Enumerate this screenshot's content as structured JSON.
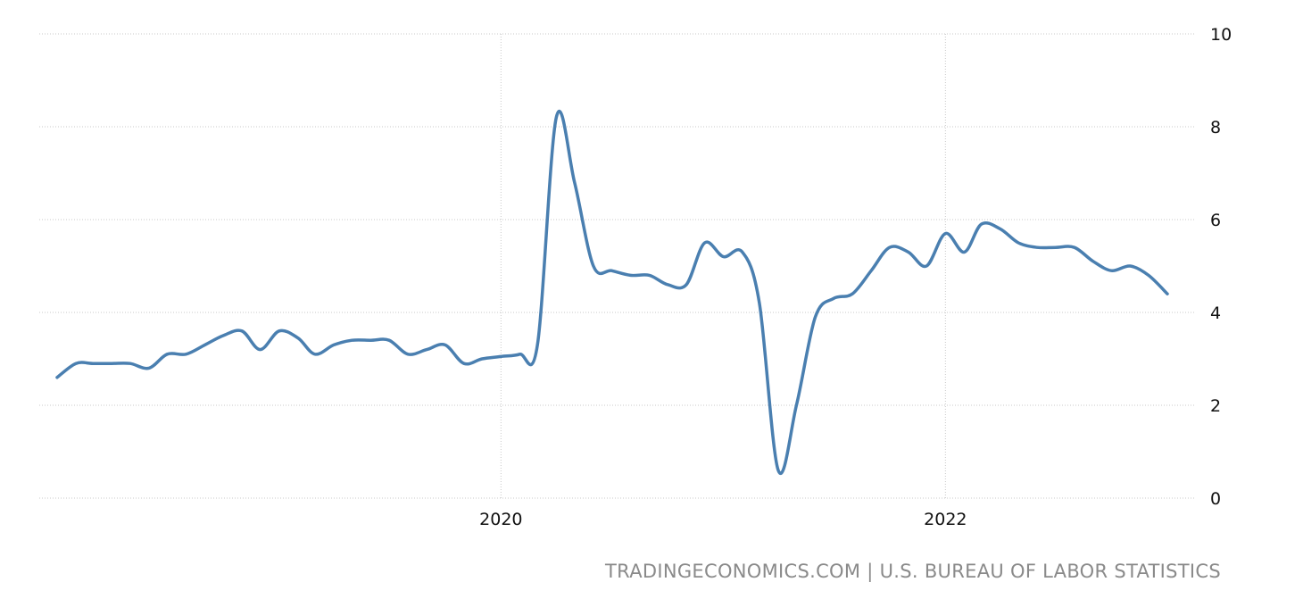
{
  "source": "TRADINGECONOMICS.COM | U.S. BUREAU OF LABOR STATISTICS",
  "colors": {
    "line": "#4a7fb0",
    "grid": "#c8c8c8",
    "text": "#111111",
    "source": "#8a8a8a"
  },
  "chart_data": {
    "type": "line",
    "title": "",
    "xlabel": "",
    "ylabel": "",
    "ylim": [
      0,
      10
    ],
    "yticks": [
      "0",
      "2",
      "4",
      "6",
      "8",
      "10"
    ],
    "xlim": [
      "2018-01-01",
      "2023-02-01"
    ],
    "xticks": [
      {
        "date": "2020-01-01",
        "label": "2020"
      },
      {
        "date": "2022-01-01",
        "label": "2022"
      }
    ],
    "grid": true,
    "legend": "none",
    "series": [
      {
        "points": [
          [
            "2018-01-01",
            2.6
          ],
          [
            "2018-02-01",
            2.9
          ],
          [
            "2018-03-01",
            2.9
          ],
          [
            "2018-04-01",
            2.9
          ],
          [
            "2018-05-01",
            2.9
          ],
          [
            "2018-06-01",
            2.8
          ],
          [
            "2018-07-01",
            3.1
          ],
          [
            "2018-08-01",
            3.1
          ],
          [
            "2018-09-01",
            3.3
          ],
          [
            "2018-10-01",
            3.5
          ],
          [
            "2018-11-01",
            3.6
          ],
          [
            "2018-12-01",
            3.2
          ],
          [
            "2019-01-01",
            3.6
          ],
          [
            "2019-02-01",
            3.45
          ],
          [
            "2019-03-01",
            3.1
          ],
          [
            "2019-04-01",
            3.3
          ],
          [
            "2019-05-01",
            3.4
          ],
          [
            "2019-06-01",
            3.4
          ],
          [
            "2019-07-01",
            3.4
          ],
          [
            "2019-08-01",
            3.1
          ],
          [
            "2019-09-01",
            3.2
          ],
          [
            "2019-10-01",
            3.3
          ],
          [
            "2019-11-01",
            2.9
          ],
          [
            "2019-12-01",
            3.0
          ],
          [
            "2020-01-01",
            3.05
          ],
          [
            "2020-02-01",
            3.1
          ],
          [
            "2020-03-01",
            3.3
          ],
          [
            "2020-04-01",
            8.2
          ],
          [
            "2020-05-01",
            6.8
          ],
          [
            "2020-06-01",
            5.0
          ],
          [
            "2020-07-01",
            4.9
          ],
          [
            "2020-08-01",
            4.8
          ],
          [
            "2020-09-01",
            4.8
          ],
          [
            "2020-10-01",
            4.6
          ],
          [
            "2020-11-01",
            4.6
          ],
          [
            "2020-12-01",
            5.5
          ],
          [
            "2021-01-01",
            5.2
          ],
          [
            "2021-02-01",
            5.3
          ],
          [
            "2021-03-01",
            4.2
          ],
          [
            "2021-04-01",
            0.6
          ],
          [
            "2021-05-01",
            2.0
          ],
          [
            "2021-06-01",
            3.9
          ],
          [
            "2021-07-01",
            4.3
          ],
          [
            "2021-08-01",
            4.4
          ],
          [
            "2021-09-01",
            4.9
          ],
          [
            "2021-10-01",
            5.4
          ],
          [
            "2021-11-01",
            5.3
          ],
          [
            "2021-12-01",
            5.0
          ],
          [
            "2022-01-01",
            5.7
          ],
          [
            "2022-02-01",
            5.3
          ],
          [
            "2022-03-01",
            5.9
          ],
          [
            "2022-04-01",
            5.8
          ],
          [
            "2022-05-01",
            5.5
          ],
          [
            "2022-06-01",
            5.4
          ],
          [
            "2022-07-01",
            5.4
          ],
          [
            "2022-08-01",
            5.4
          ],
          [
            "2022-09-01",
            5.1
          ],
          [
            "2022-10-01",
            4.9
          ],
          [
            "2022-11-01",
            5.0
          ],
          [
            "2022-12-01",
            4.8
          ],
          [
            "2023-01-01",
            4.4
          ]
        ]
      }
    ]
  }
}
